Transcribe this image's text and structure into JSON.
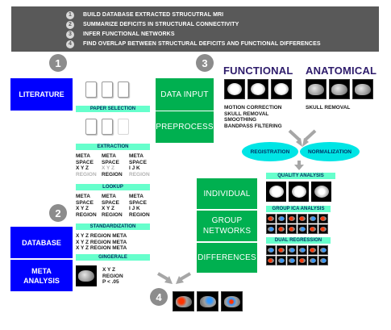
{
  "steps": [
    {
      "num": "1",
      "text": "BUILD DATABASE EXTRACTED STRUCUTRAL MRI"
    },
    {
      "num": "2",
      "text": "SUMMARIZE DEFICITS IN STRUCTURAL CONNECTIVITY"
    },
    {
      "num": "3",
      "text": "INFER FUNCTIONAL NETWORKS"
    },
    {
      "num": "4",
      "text": "FIND OVERLAP BETWEEN STRUCTURAL DEFICITS AND FUNCTIONAL DIFFERENCES"
    }
  ],
  "circles": {
    "c1": "1",
    "c2": "2",
    "c3": "3",
    "c4": "4"
  },
  "left": {
    "literature": "LITERATURE",
    "database": "DATABASE",
    "meta_analysis": "META ANALYSIS"
  },
  "center": {
    "paper_selection": "PAPER SELECTION",
    "extraction": "EXTRACTION",
    "extraction_cols": [
      {
        "line1": "META",
        "line2": "SPACE",
        "line3": "X Y Z",
        "line4": "REGION",
        "line3_grey": false,
        "line4_grey": true
      },
      {
        "line1": "META",
        "line2": "SPACE",
        "line3": "X Y Z",
        "line4": "REGION",
        "line3_grey": true,
        "line4_grey": false
      },
      {
        "line1": "META",
        "line2": "SPACE",
        "line3": "I J K",
        "line4": "REGION",
        "line3_grey": false,
        "line4_grey": true
      }
    ],
    "lookup": "LOOKUP",
    "lookup_cols": [
      {
        "line1": "META",
        "line2": "SPACE",
        "line3": "X Y Z",
        "line4": "REGION"
      },
      {
        "line1": "META",
        "line2": "SPACE",
        "line3": "X Y Z",
        "line4": "REGION"
      },
      {
        "line1": "META",
        "line2": "SPACE",
        "line3": "I J K",
        "line4": "REGION"
      }
    ],
    "standardization": "STANDARDIZATION",
    "standard_rows": [
      "X Y Z REGION META",
      "X Y Z REGION META",
      "X Y Z REGION META"
    ],
    "gingerale": "GINGERALE",
    "gingerale_text": [
      "X Y Z",
      "REGION",
      "P < .05"
    ]
  },
  "right": {
    "data_input": "DATA INPUT",
    "preprocess": "PREPROCESS",
    "functional_title": "FUNCTIONAL",
    "anatomical_title": "ANATOMICAL",
    "functional_steps": [
      "MOTION CORRECTION",
      "SKULL REMOVAL",
      "SMOOTHING",
      "BANDPASS FILTERING"
    ],
    "anatomical_steps": [
      "SKULL REMOVAL"
    ],
    "registration": "REGISTRATION",
    "normalization": "NORMALIZATION",
    "individual": "INDIVIDUAL",
    "group_networks": "GROUP NETWORKS",
    "differences": "DIFFERENCES",
    "quality_analysis": "QUALITY ANALYSIS",
    "group_ica": "GROUP ICA ANALYSIS",
    "dual_regression": "DUAL REGRESSION"
  },
  "colors": {
    "banner": "#595959",
    "blue_box": "#0000ff",
    "green_box": "#00b050",
    "mint_label": "#66ffcc",
    "ellipse": "#00e5e5",
    "title_purple": "#2e1c6b"
  }
}
